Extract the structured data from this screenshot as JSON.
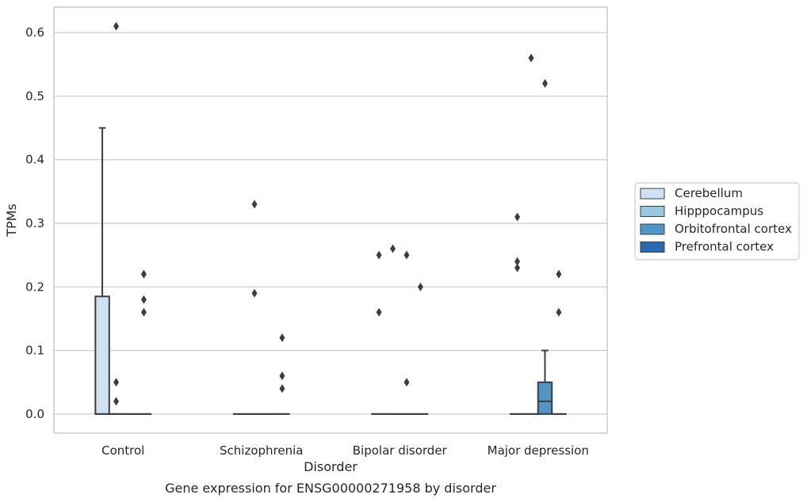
{
  "chart_data": {
    "type": "box",
    "title": "",
    "caption": "Gene expression for ENSG00000271958 by disorder",
    "xlabel": "Disorder",
    "ylabel": "TPMs",
    "ylim": [
      -0.03,
      0.64
    ],
    "yticks": [
      0.0,
      0.1,
      0.2,
      0.3,
      0.4,
      0.5,
      0.6
    ],
    "ytick_labels": [
      "0.0",
      "0.1",
      "0.2",
      "0.3",
      "0.4",
      "0.5",
      "0.6"
    ],
    "categories": [
      "Control",
      "Schizophrenia",
      "Bipolar disorder",
      "Major depression"
    ],
    "grid": true,
    "legend_position": "right",
    "series": [
      {
        "name": "Cerebellum",
        "color": "#d0e1f1",
        "boxes": [
          {
            "whislo": 0.0,
            "q1": 0.0,
            "med": 0.0,
            "q3": 0.185,
            "whishi": 0.45,
            "fliers": []
          },
          {
            "whislo": 0.0,
            "q1": 0.0,
            "med": 0.0,
            "q3": 0.0,
            "whishi": 0.0,
            "fliers": []
          },
          {
            "whislo": 0.0,
            "q1": 0.0,
            "med": 0.0,
            "q3": 0.0,
            "whishi": 0.0,
            "fliers": [
              0.16,
              0.25
            ]
          },
          {
            "whislo": 0.0,
            "q1": 0.0,
            "med": 0.0,
            "q3": 0.0,
            "whishi": 0.0,
            "fliers": [
              0.23,
              0.24,
              0.31
            ]
          }
        ]
      },
      {
        "name": "Hipppocampus",
        "color": "#9ac8e0",
        "boxes": [
          {
            "whislo": 0.0,
            "q1": 0.0,
            "med": 0.0,
            "q3": 0.0,
            "whishi": 0.0,
            "fliers": [
              0.02,
              0.05,
              0.61
            ]
          },
          {
            "whislo": 0.0,
            "q1": 0.0,
            "med": 0.0,
            "q3": 0.0,
            "whishi": 0.0,
            "fliers": [
              0.19,
              0.33
            ]
          },
          {
            "whislo": 0.0,
            "q1": 0.0,
            "med": 0.0,
            "q3": 0.0,
            "whishi": 0.0,
            "fliers": [
              0.26
            ]
          },
          {
            "whislo": 0.0,
            "q1": 0.0,
            "med": 0.0,
            "q3": 0.0,
            "whishi": 0.0,
            "fliers": [
              0.56
            ]
          }
        ]
      },
      {
        "name": "Orbitofrontal cortex",
        "color": "#5296c6",
        "boxes": [
          {
            "whislo": 0.0,
            "q1": 0.0,
            "med": 0.0,
            "q3": 0.0,
            "whishi": 0.0,
            "fliers": []
          },
          {
            "whislo": 0.0,
            "q1": 0.0,
            "med": 0.0,
            "q3": 0.0,
            "whishi": 0.0,
            "fliers": []
          },
          {
            "whislo": 0.0,
            "q1": 0.0,
            "med": 0.0,
            "q3": 0.0,
            "whishi": 0.0,
            "fliers": [
              0.05,
              0.25
            ]
          },
          {
            "whislo": 0.0,
            "q1": 0.0,
            "med": 0.02,
            "q3": 0.05,
            "whishi": 0.1,
            "fliers": [
              0.52
            ]
          }
        ]
      },
      {
        "name": "Prefrontal cortex",
        "color": "#2a6aae",
        "boxes": [
          {
            "whislo": 0.0,
            "q1": 0.0,
            "med": 0.0,
            "q3": 0.0,
            "whishi": 0.0,
            "fliers": [
              0.16,
              0.18,
              0.22
            ]
          },
          {
            "whislo": 0.0,
            "q1": 0.0,
            "med": 0.0,
            "q3": 0.0,
            "whishi": 0.0,
            "fliers": [
              0.04,
              0.06,
              0.12
            ]
          },
          {
            "whislo": 0.0,
            "q1": 0.0,
            "med": 0.0,
            "q3": 0.0,
            "whishi": 0.0,
            "fliers": [
              0.2
            ]
          },
          {
            "whislo": 0.0,
            "q1": 0.0,
            "med": 0.0,
            "q3": 0.0,
            "whishi": 0.0,
            "fliers": [
              0.16,
              0.22
            ]
          }
        ]
      }
    ]
  }
}
